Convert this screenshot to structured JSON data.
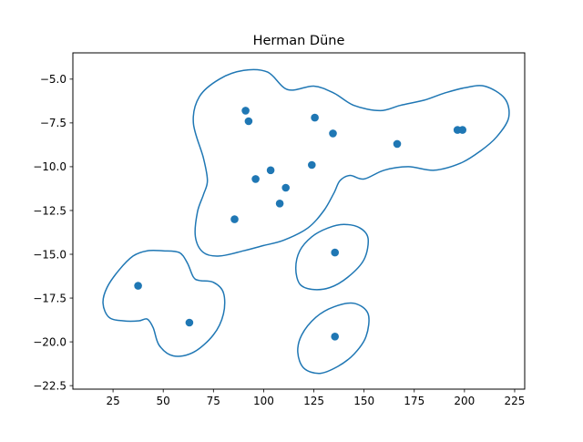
{
  "chart_data": {
    "type": "scatter",
    "title": "Herman Düne",
    "xlabel": "",
    "ylabel": "",
    "xlim": [
      5,
      230
    ],
    "ylim": [
      -22.7,
      -3.5
    ],
    "xticks": [
      25,
      50,
      75,
      100,
      125,
      150,
      175,
      200,
      225
    ],
    "yticks": [
      -5.0,
      -7.5,
      -10.0,
      -12.5,
      -15.0,
      -17.5,
      -20.0,
      -22.5
    ],
    "xtick_labels": [
      "25",
      "50",
      "75",
      "100",
      "125",
      "150",
      "175",
      "200",
      "225"
    ],
    "ytick_labels": [
      "−5.0",
      "−7.5",
      "−10.0",
      "−12.5",
      "−15.0",
      "−17.5",
      "−20.0",
      "−22.5"
    ],
    "grid": false,
    "color": "#1f77b4",
    "points": [
      {
        "x": 91,
        "y": -6.8
      },
      {
        "x": 92.5,
        "y": -7.4
      },
      {
        "x": 125.5,
        "y": -7.2
      },
      {
        "x": 134.5,
        "y": -8.1
      },
      {
        "x": 166.5,
        "y": -8.7
      },
      {
        "x": 196.5,
        "y": -7.9
      },
      {
        "x": 199,
        "y": -7.9
      },
      {
        "x": 124,
        "y": -9.9
      },
      {
        "x": 103.5,
        "y": -10.2
      },
      {
        "x": 96,
        "y": -10.7
      },
      {
        "x": 111,
        "y": -11.2
      },
      {
        "x": 108,
        "y": -12.1
      },
      {
        "x": 85.5,
        "y": -13.0
      },
      {
        "x": 135.5,
        "y": -14.9
      },
      {
        "x": 37.5,
        "y": -16.8
      },
      {
        "x": 63,
        "y": -18.9
      },
      {
        "x": 135.5,
        "y": -19.7
      }
    ],
    "contours": [
      [
        [
          70,
          -9.5
        ],
        [
          65,
          -7.5
        ],
        [
          68,
          -6.0
        ],
        [
          78,
          -5.0
        ],
        [
          90,
          -4.5
        ],
        [
          102,
          -4.6
        ],
        [
          112,
          -5.6
        ],
        [
          125,
          -5.4
        ],
        [
          135,
          -5.8
        ],
        [
          145,
          -6.5
        ],
        [
          158,
          -6.8
        ],
        [
          168,
          -6.5
        ],
        [
          180,
          -6.2
        ],
        [
          190,
          -5.8
        ],
        [
          200,
          -5.5
        ],
        [
          210,
          -5.4
        ],
        [
          220,
          -6.1
        ],
        [
          222,
          -7.2
        ],
        [
          216,
          -8.3
        ],
        [
          208,
          -9.1
        ],
        [
          198,
          -9.8
        ],
        [
          185,
          -10.2
        ],
        [
          172,
          -10.0
        ],
        [
          160,
          -10.2
        ],
        [
          150,
          -10.7
        ],
        [
          143,
          -10.5
        ],
        [
          138,
          -10.8
        ],
        [
          135,
          -11.5
        ],
        [
          130,
          -12.5
        ],
        [
          122,
          -13.5
        ],
        [
          110,
          -14.2
        ],
        [
          100,
          -14.5
        ],
        [
          90,
          -14.8
        ],
        [
          78,
          -15.1
        ],
        [
          70,
          -14.9
        ],
        [
          66,
          -14.0
        ],
        [
          67,
          -12.6
        ],
        [
          70,
          -11.6
        ],
        [
          72,
          -10.8
        ]
      ],
      [
        [
          140,
          -13.3
        ],
        [
          148,
          -13.5
        ],
        [
          152,
          -14.1
        ],
        [
          150,
          -15.3
        ],
        [
          142,
          -16.3
        ],
        [
          133,
          -16.9
        ],
        [
          124,
          -17.0
        ],
        [
          118,
          -16.7
        ],
        [
          116,
          -15.8
        ],
        [
          118,
          -14.8
        ],
        [
          124,
          -14.0
        ],
        [
          132,
          -13.5
        ]
      ],
      [
        [
          145,
          -17.8
        ],
        [
          152,
          -18.4
        ],
        [
          151,
          -19.7
        ],
        [
          145,
          -20.7
        ],
        [
          137,
          -21.4
        ],
        [
          128,
          -21.8
        ],
        [
          120,
          -21.5
        ],
        [
          117,
          -20.6
        ],
        [
          119,
          -19.6
        ],
        [
          126,
          -18.6
        ],
        [
          135,
          -18.0
        ]
      ],
      [
        [
          50,
          -14.8
        ],
        [
          58,
          -14.9
        ],
        [
          62,
          -15.5
        ],
        [
          65,
          -16.3
        ],
        [
          68,
          -16.5
        ],
        [
          75,
          -16.6
        ],
        [
          80,
          -17.2
        ],
        [
          80,
          -18.4
        ],
        [
          75,
          -19.6
        ],
        [
          65,
          -20.6
        ],
        [
          55,
          -20.8
        ],
        [
          48,
          -20.2
        ],
        [
          45,
          -19.2
        ],
        [
          42,
          -18.7
        ],
        [
          38,
          -18.8
        ],
        [
          30,
          -18.8
        ],
        [
          23,
          -18.6
        ],
        [
          20,
          -17.8
        ],
        [
          22,
          -16.9
        ],
        [
          28,
          -15.9
        ],
        [
          35,
          -15.1
        ],
        [
          42,
          -14.8
        ]
      ]
    ]
  }
}
